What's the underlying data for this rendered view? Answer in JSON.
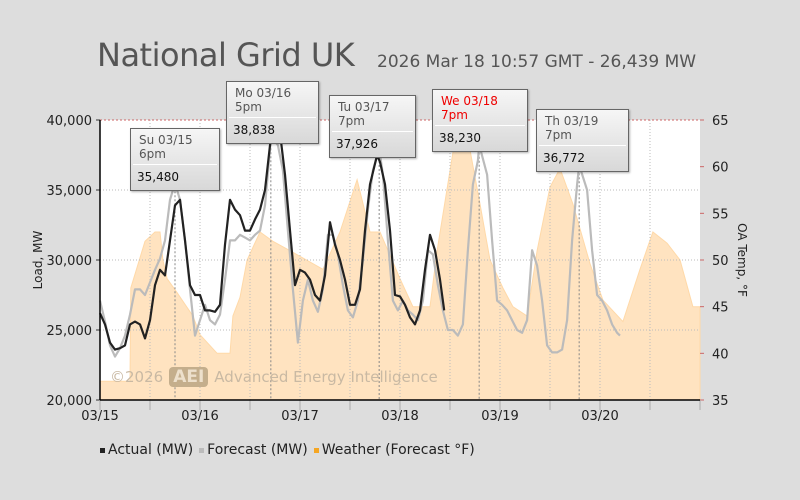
{
  "header": {
    "title": "National Grid UK",
    "subtitle": "2026 Mar 18 10:57 GMT - 26,439 MW"
  },
  "watermark": {
    "copyright": "©2026",
    "logo": "AEI",
    "name": "Advanced Energy Intelligence"
  },
  "legend": [
    {
      "label": "Actual (MW)",
      "color": "#222222"
    },
    {
      "label": "Forecast (MW)",
      "color": "#bbbbbb"
    },
    {
      "label": "Weather (Forecast °F)",
      "color": "#f5a623"
    }
  ],
  "tooltips": [
    {
      "label": "Su 03/15 6pm",
      "value": "35,480",
      "hour": 18,
      "mw": 35480,
      "highlight": false
    },
    {
      "label": "Mo 03/16 5pm",
      "value": "38,838",
      "hour": 41,
      "mw": 38838,
      "highlight": false
    },
    {
      "label": "Tu 03/17 7pm",
      "value": "37,926",
      "hour": 67,
      "mw": 37926,
      "highlight": false
    },
    {
      "label": "We 03/18 7pm",
      "value": "38,230",
      "hour": 91,
      "mw": 38230,
      "highlight": true
    },
    {
      "label": "Th 03/19 7pm",
      "value": "36,772",
      "hour": 115,
      "mw": 36772,
      "highlight": false
    }
  ],
  "chart_data": {
    "type": "line",
    "title": "National Grid UK",
    "xlabel": "",
    "ylabel": "Load, MW",
    "y2label": "OA Temp, °F",
    "x_unit": "hours since 03/15 00:00",
    "xlim": [
      0,
      144
    ],
    "ylim": [
      20000,
      40000
    ],
    "y2lim": [
      35,
      65
    ],
    "x_ticks": [
      "03/15",
      "03/16",
      "03/17",
      "03/18",
      "03/19",
      "03/20"
    ],
    "y_ticks": [
      "20,000",
      "25,000",
      "30,000",
      "35,000",
      "40,000"
    ],
    "y2_ticks": [
      "35",
      "40",
      "45",
      "50",
      "55",
      "60",
      "65"
    ],
    "grid": true,
    "legend_position": "bottom",
    "series": [
      {
        "name": "Weather (Forecast °F)",
        "axis": "right",
        "type": "area",
        "color": "#ffe3c0",
        "points": [
          [
            0,
            37
          ],
          [
            7.2,
            37
          ],
          [
            7.4,
            47
          ],
          [
            10.8,
            52
          ],
          [
            13.2,
            53
          ],
          [
            14.4,
            53
          ],
          [
            15.1,
            50
          ],
          [
            16.1,
            48
          ],
          [
            18.5,
            46.5
          ],
          [
            22.3,
            44
          ],
          [
            24,
            42
          ],
          [
            28.1,
            40
          ],
          [
            31.2,
            40
          ],
          [
            31.9,
            44
          ],
          [
            33.6,
            46
          ],
          [
            35.3,
            50
          ],
          [
            38.4,
            53
          ],
          [
            41.5,
            52
          ],
          [
            45.6,
            51
          ],
          [
            53.5,
            49
          ],
          [
            57.6,
            53
          ],
          [
            61.7,
            58.6
          ],
          [
            64.8,
            53
          ],
          [
            67.2,
            53
          ],
          [
            72,
            48
          ],
          [
            75.1,
            45
          ],
          [
            79.2,
            45
          ],
          [
            80.9,
            51
          ],
          [
            85.2,
            62.9
          ],
          [
            88.8,
            61.8
          ],
          [
            91.2,
            56
          ],
          [
            93.6,
            50
          ],
          [
            96.7,
            47
          ],
          [
            99.1,
            45
          ],
          [
            102.5,
            44
          ],
          [
            104.9,
            51
          ],
          [
            108,
            57.8
          ],
          [
            110.4,
            59.8
          ],
          [
            113.5,
            56
          ],
          [
            117.6,
            49.6
          ],
          [
            120.7,
            45.7
          ],
          [
            125.5,
            43.4
          ],
          [
            129.6,
            49
          ],
          [
            132.7,
            53
          ],
          [
            136.1,
            51.8
          ],
          [
            139.2,
            50
          ],
          [
            142.3,
            45
          ],
          [
            144,
            45
          ]
        ]
      },
      {
        "name": "Forecast (MW)",
        "axis": "left",
        "type": "line",
        "color": "#bbbbbb",
        "points": [
          [
            0,
            27100
          ],
          [
            1.2,
            25600
          ],
          [
            2.4,
            23900
          ],
          [
            3.6,
            23100
          ],
          [
            4.8,
            23700
          ],
          [
            6,
            24600
          ],
          [
            7.2,
            26100
          ],
          [
            8.4,
            27900
          ],
          [
            9.6,
            27900
          ],
          [
            10.8,
            27500
          ],
          [
            12,
            28400
          ],
          [
            13.2,
            29300
          ],
          [
            14.4,
            30100
          ],
          [
            15.6,
            31400
          ],
          [
            16.8,
            34300
          ],
          [
            18,
            35480
          ],
          [
            19.2,
            34300
          ],
          [
            20.4,
            31400
          ],
          [
            21.6,
            27900
          ],
          [
            22.8,
            24600
          ],
          [
            24,
            25700
          ],
          [
            25.2,
            26800
          ],
          [
            26.4,
            25700
          ],
          [
            27.6,
            25400
          ],
          [
            28.8,
            26100
          ],
          [
            30,
            28600
          ],
          [
            31.2,
            31400
          ],
          [
            32.4,
            31400
          ],
          [
            33.6,
            31800
          ],
          [
            34.8,
            31600
          ],
          [
            36,
            31400
          ],
          [
            37.2,
            31800
          ],
          [
            38.4,
            32100
          ],
          [
            39.6,
            33900
          ],
          [
            40.8,
            37900
          ],
          [
            41,
            38838
          ],
          [
            42.7,
            38200
          ],
          [
            43.9,
            36400
          ],
          [
            45.1,
            32100
          ],
          [
            46.3,
            27900
          ],
          [
            47.5,
            24100
          ],
          [
            48.7,
            27100
          ],
          [
            49.9,
            28600
          ],
          [
            51.1,
            27100
          ],
          [
            52.3,
            26300
          ],
          [
            53.5,
            27900
          ],
          [
            54.7,
            31800
          ],
          [
            55.9,
            31800
          ],
          [
            57.1,
            30400
          ],
          [
            58.3,
            28200
          ],
          [
            59.5,
            26400
          ],
          [
            60.7,
            25900
          ],
          [
            61.9,
            27100
          ],
          [
            63.1,
            30000
          ],
          [
            64.3,
            33600
          ],
          [
            65.5,
            36400
          ],
          [
            67,
            37926
          ],
          [
            67.9,
            36100
          ],
          [
            69.1,
            31400
          ],
          [
            70.3,
            27100
          ],
          [
            71.5,
            26400
          ],
          [
            72.7,
            27100
          ],
          [
            73.9,
            26400
          ],
          [
            75.1,
            26100
          ],
          [
            76.3,
            25700
          ],
          [
            77.5,
            27100
          ],
          [
            78.7,
            30700
          ],
          [
            79.9,
            30400
          ],
          [
            81.1,
            28200
          ],
          [
            82.3,
            26400
          ],
          [
            83.5,
            25000
          ],
          [
            84.7,
            25000
          ],
          [
            85.9,
            24600
          ],
          [
            87.1,
            25400
          ],
          [
            88.3,
            30700
          ],
          [
            89.5,
            35400
          ],
          [
            90.7,
            37100
          ],
          [
            91,
            38230
          ],
          [
            92.9,
            36100
          ],
          [
            94.1,
            31400
          ],
          [
            95.3,
            27100
          ],
          [
            96.5,
            26800
          ],
          [
            97.7,
            26400
          ],
          [
            98.9,
            25700
          ],
          [
            100.1,
            25000
          ],
          [
            101.3,
            24800
          ],
          [
            102.5,
            25700
          ],
          [
            103.7,
            30700
          ],
          [
            104.9,
            29600
          ],
          [
            106.1,
            27100
          ],
          [
            107.3,
            23900
          ],
          [
            108.5,
            23400
          ],
          [
            109.7,
            23400
          ],
          [
            110.9,
            23600
          ],
          [
            112.1,
            25700
          ],
          [
            113.3,
            31400
          ],
          [
            114.5,
            35400
          ],
          [
            115,
            36772
          ],
          [
            116.9,
            35000
          ],
          [
            118.1,
            30700
          ],
          [
            119.3,
            27500
          ],
          [
            120.5,
            27100
          ],
          [
            121.7,
            26400
          ],
          [
            122.9,
            25400
          ],
          [
            124.1,
            24800
          ],
          [
            124.8,
            24600
          ]
        ]
      },
      {
        "name": "Actual (MW)",
        "axis": "left",
        "type": "line",
        "color": "#222222",
        "points": [
          [
            0,
            26200
          ],
          [
            1.2,
            25400
          ],
          [
            2.4,
            24100
          ],
          [
            3.6,
            23600
          ],
          [
            4.8,
            23700
          ],
          [
            6,
            23900
          ],
          [
            7.2,
            25400
          ],
          [
            8.4,
            25600
          ],
          [
            9.6,
            25400
          ],
          [
            10.8,
            24400
          ],
          [
            12,
            25700
          ],
          [
            13.2,
            28200
          ],
          [
            14.4,
            29300
          ],
          [
            15.6,
            28900
          ],
          [
            16.8,
            31400
          ],
          [
            18,
            33900
          ],
          [
            19.2,
            34300
          ],
          [
            20.4,
            31400
          ],
          [
            21.6,
            28200
          ],
          [
            22.8,
            27500
          ],
          [
            24,
            27500
          ],
          [
            25.2,
            26400
          ],
          [
            26.4,
            26400
          ],
          [
            27.6,
            26300
          ],
          [
            28.8,
            26800
          ],
          [
            30,
            31100
          ],
          [
            31.2,
            34300
          ],
          [
            32.4,
            33600
          ],
          [
            33.6,
            33200
          ],
          [
            34.8,
            32100
          ],
          [
            36,
            32100
          ],
          [
            37.2,
            32900
          ],
          [
            38.4,
            33600
          ],
          [
            39.6,
            35000
          ],
          [
            40.8,
            38200
          ],
          [
            41.5,
            39300
          ],
          [
            42.5,
            38600
          ],
          [
            43.4,
            38600
          ],
          [
            44.4,
            36100
          ],
          [
            45.6,
            32100
          ],
          [
            46.8,
            28200
          ],
          [
            48,
            29300
          ],
          [
            49.2,
            29100
          ],
          [
            50.4,
            28600
          ],
          [
            51.6,
            27500
          ],
          [
            52.8,
            27100
          ],
          [
            54,
            28900
          ],
          [
            55.2,
            32700
          ],
          [
            56.4,
            31100
          ],
          [
            57.6,
            30000
          ],
          [
            58.8,
            28600
          ],
          [
            60,
            26800
          ],
          [
            61.2,
            26800
          ],
          [
            62.4,
            27900
          ],
          [
            63.6,
            32100
          ],
          [
            64.8,
            35400
          ],
          [
            66.5,
            37500
          ],
          [
            67.2,
            37000
          ],
          [
            68.4,
            35400
          ],
          [
            69.6,
            32100
          ],
          [
            70.8,
            27500
          ],
          [
            72,
            27400
          ],
          [
            73.2,
            26800
          ],
          [
            74.4,
            25900
          ],
          [
            75.6,
            25400
          ],
          [
            76.8,
            26400
          ],
          [
            78,
            29300
          ],
          [
            79.2,
            31800
          ],
          [
            80.4,
            30700
          ],
          [
            81.6,
            28600
          ],
          [
            82.6,
            26400
          ]
        ]
      }
    ]
  }
}
